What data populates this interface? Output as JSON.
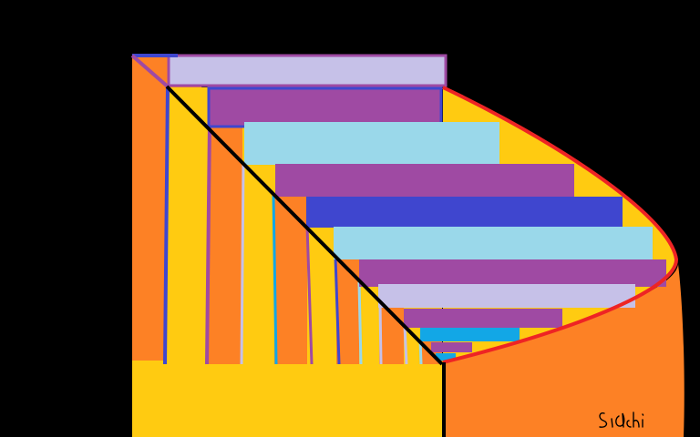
{
  "artwork": {
    "signature": "Sidchi",
    "palette": {
      "background": "#000000",
      "orange": "#fd8125",
      "yellow": "#ffcb11",
      "lavender": "#c6c1e8",
      "purple": "#9f4aa3",
      "light_blue": "#9ad8ea",
      "royal_blue": "#3f46cf",
      "sky_blue": "#12a7e6",
      "red_outline": "#ee2424",
      "diagonal_line": "#000000"
    }
  }
}
